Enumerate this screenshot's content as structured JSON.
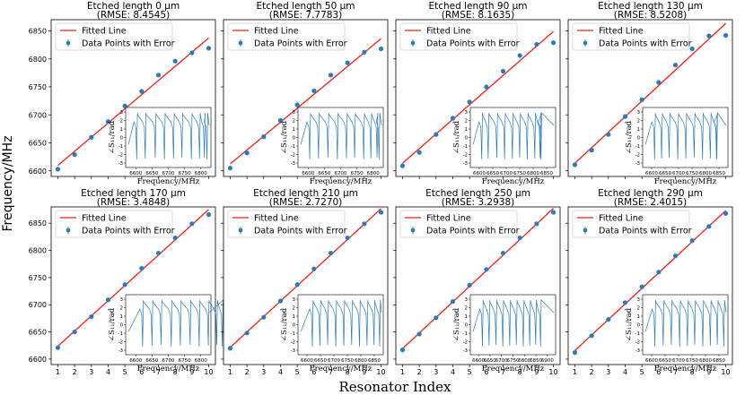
{
  "figure": {
    "xlabel": "Resonator Index",
    "ylabel": "Frequency/MHz"
  },
  "legend": {
    "fitted_label": "Fitted Line",
    "points_label": "Data Points with Error",
    "fit_color": "#e8211b",
    "point_color": "#2f7ab5"
  },
  "inset": {
    "xlabel": "Frequency/MHz",
    "ylabel": "∠S₁₁/rad",
    "yticks": [
      "3",
      "2",
      "1",
      "0",
      "-1",
      "-2",
      "-3"
    ],
    "line_color": "#2f7ab5"
  },
  "chart_data": [
    {
      "type": "scatter",
      "title": "Etched length 0 μm",
      "subtitle": "(RMSE: 8.4545)",
      "x": [
        1,
        2,
        3,
        4,
        5,
        6,
        7,
        8,
        9,
        10
      ],
      "y": [
        6603,
        6629,
        6660,
        6688,
        6716,
        6742,
        6771,
        6796,
        6811,
        6819
      ],
      "xlim": [
        0.6,
        10.4
      ],
      "ylim": [
        6590,
        6870
      ],
      "yticks": [
        6600,
        6650,
        6700,
        6750,
        6800,
        6850
      ],
      "xticks": [],
      "inset_xticks": [
        6600,
        6650,
        6700,
        6750,
        6800
      ]
    },
    {
      "type": "scatter",
      "title": "Etched length 50 μm",
      "subtitle": "(RMSE: 7.7783)",
      "x": [
        1,
        2,
        3,
        4,
        5,
        6,
        7,
        8,
        9,
        10
      ],
      "y": [
        6605,
        6632,
        6661,
        6690,
        6718,
        6743,
        6771,
        6793,
        6812,
        6818
      ],
      "xlim": [
        0.6,
        10.4
      ],
      "ylim": [
        6590,
        6870
      ],
      "yticks": [],
      "xticks": [],
      "inset_xticks": [
        6600,
        6650,
        6700,
        6750,
        6800
      ]
    },
    {
      "type": "scatter",
      "title": "Etched length 90 μm",
      "subtitle": "(RMSE: 8.1635)",
      "x": [
        1,
        2,
        3,
        4,
        5,
        6,
        7,
        8,
        9,
        10
      ],
      "y": [
        6609,
        6633,
        6665,
        6694,
        6723,
        6750,
        6778,
        6806,
        6826,
        6829
      ],
      "xlim": [
        0.6,
        10.4
      ],
      "ylim": [
        6590,
        6870
      ],
      "yticks": [],
      "xticks": [],
      "inset_xticks": [
        6600,
        6650,
        6700,
        6750,
        6800,
        6850
      ]
    },
    {
      "type": "scatter",
      "title": "Etched length 130 μm",
      "subtitle": "(RMSE: 8.5208)",
      "x": [
        1,
        2,
        3,
        4,
        5,
        6,
        7,
        8,
        9,
        10
      ],
      "y": [
        6611,
        6637,
        6665,
        6697,
        6727,
        6758,
        6789,
        6818,
        6841,
        6842
      ],
      "xlim": [
        0.6,
        10.4
      ],
      "ylim": [
        6590,
        6870
      ],
      "yticks": [],
      "xticks": [],
      "inset_xticks": [
        6600,
        6650,
        6700,
        6750,
        6800,
        6850
      ]
    },
    {
      "type": "scatter",
      "title": "Etched length 170 μm",
      "subtitle": "(RMSE: 3.4848)",
      "x": [
        1,
        2,
        3,
        4,
        5,
        6,
        7,
        8,
        9,
        10
      ],
      "y": [
        6621,
        6650,
        6678,
        6709,
        6737,
        6767,
        6795,
        6823,
        6849,
        6866
      ],
      "xlim": [
        0.6,
        10.4
      ],
      "ylim": [
        6590,
        6880
      ],
      "yticks": [
        6600,
        6650,
        6700,
        6750,
        6800,
        6850
      ],
      "xticks": [
        1,
        2,
        3,
        4,
        5,
        6,
        7,
        8,
        9,
        10
      ],
      "inset_xticks": [
        6600,
        6650,
        6700,
        6750,
        6800
      ]
    },
    {
      "type": "scatter",
      "title": "Etched length 210 μm",
      "subtitle": "(RMSE: 2.7270)",
      "x": [
        1,
        2,
        3,
        4,
        5,
        6,
        7,
        8,
        9,
        10
      ],
      "y": [
        6620,
        6648,
        6677,
        6707,
        6737,
        6766,
        6795,
        6823,
        6849,
        6870
      ],
      "xlim": [
        0.6,
        10.4
      ],
      "ylim": [
        6590,
        6880
      ],
      "yticks": [],
      "xticks": [
        1,
        2,
        3,
        4,
        5,
        6,
        7,
        8,
        9,
        10
      ],
      "inset_xticks": [
        6600,
        6650,
        6700,
        6750,
        6800,
        6850
      ]
    },
    {
      "type": "scatter",
      "title": "Etched length 250 μm",
      "subtitle": "(RMSE: 3.2938)",
      "x": [
        1,
        2,
        3,
        4,
        5,
        6,
        7,
        8,
        9,
        10
      ],
      "y": [
        6617,
        6646,
        6676,
        6706,
        6736,
        6765,
        6795,
        6823,
        6849,
        6870
      ],
      "xlim": [
        0.6,
        10.4
      ],
      "ylim": [
        6590,
        6880
      ],
      "yticks": [],
      "xticks": [
        1,
        2,
        3,
        4,
        5,
        6,
        7,
        8,
        9,
        10
      ],
      "inset_xticks": [
        6600,
        6650,
        6700,
        6750,
        6800,
        6850,
        6900
      ]
    },
    {
      "type": "scatter",
      "title": "Etched length 290 μm",
      "subtitle": "(RMSE: 2.4015)",
      "x": [
        1,
        2,
        3,
        4,
        5,
        6,
        7,
        8,
        9,
        10
      ],
      "y": [
        6612,
        6643,
        6673,
        6704,
        6733,
        6760,
        6790,
        6818,
        6844,
        6868
      ],
      "xlim": [
        0.6,
        10.4
      ],
      "ylim": [
        6590,
        6880
      ],
      "yticks": [],
      "xticks": [
        1,
        2,
        3,
        4,
        5,
        6,
        7,
        8,
        9,
        10
      ],
      "inset_xticks": [
        6600,
        6650,
        6700,
        6750,
        6800,
        6850
      ]
    }
  ]
}
